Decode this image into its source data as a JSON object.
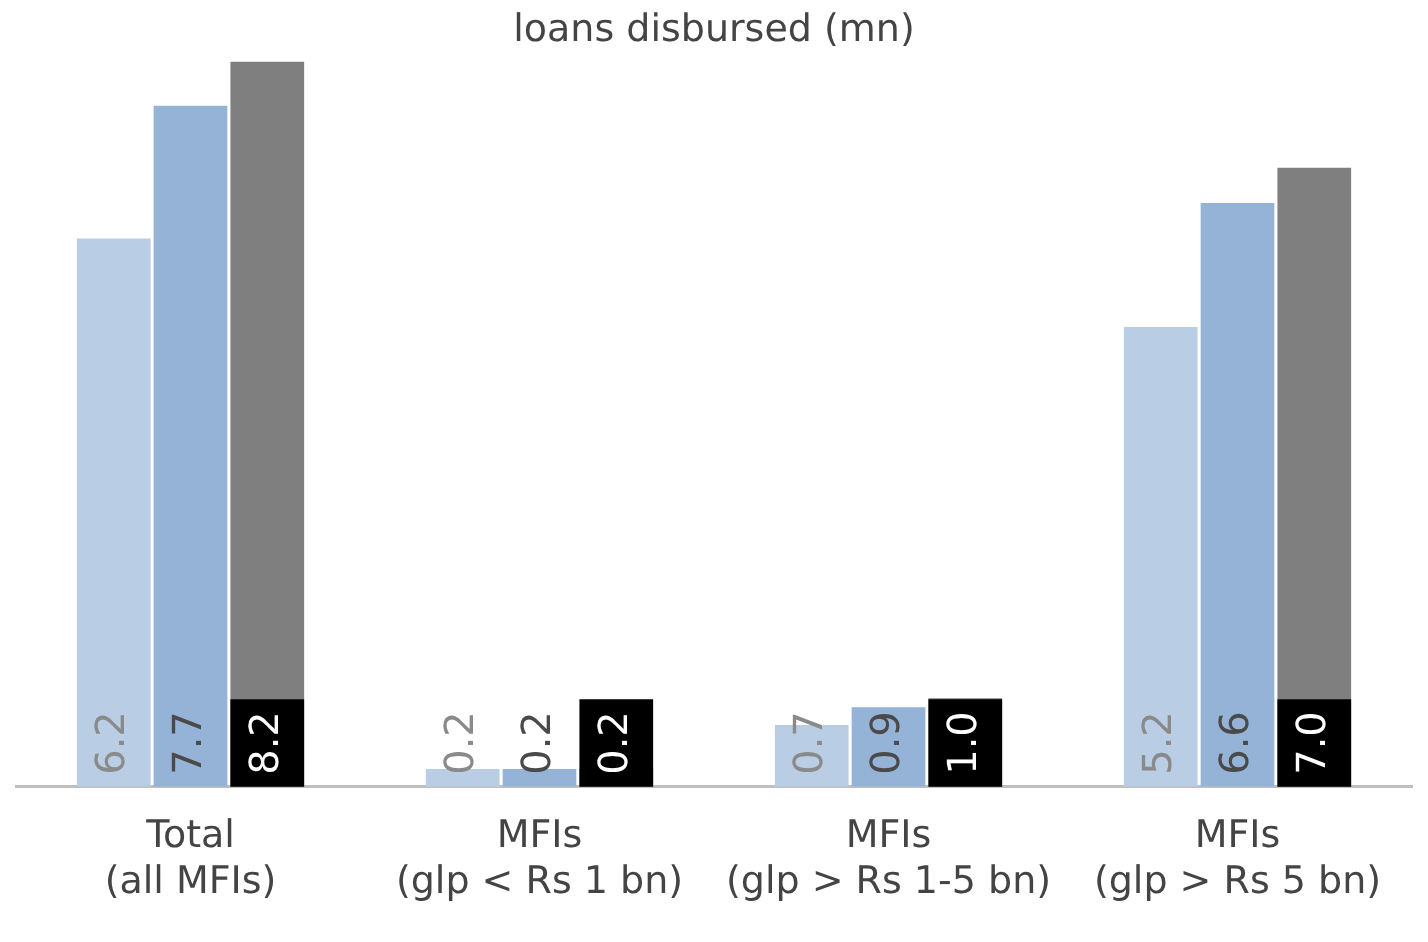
{
  "chart_data": {
    "type": "bar",
    "title": "loans disbursed (mn)",
    "categories": [
      "Total\n(all MFIs)",
      "MFIs\n(glp < Rs 1 bn)",
      "MFIs\n(glp > Rs 1-5 bn)",
      "MFIs\n(glp > Rs 5 bn)"
    ],
    "series": [
      {
        "color": "#b9cde5",
        "values": [
          6.2,
          0.2,
          0.7,
          5.2
        ],
        "value_labels": [
          "6.2",
          "0.2",
          "0.7",
          "5.2"
        ]
      },
      {
        "color": "#95b3d7",
        "values": [
          7.7,
          0.2,
          0.9,
          6.6
        ],
        "value_labels": [
          "7.7",
          "0.2",
          "0.9",
          "6.6"
        ]
      },
      {
        "color": "#7f7f7f",
        "values": [
          8.2,
          0.2,
          1.0,
          7.0
        ],
        "value_labels": [
          "8.2",
          "0.2",
          "1.0",
          "7.0"
        ]
      }
    ],
    "ylim": [
      0,
      8.2
    ],
    "grid": false,
    "legend": false
  }
}
